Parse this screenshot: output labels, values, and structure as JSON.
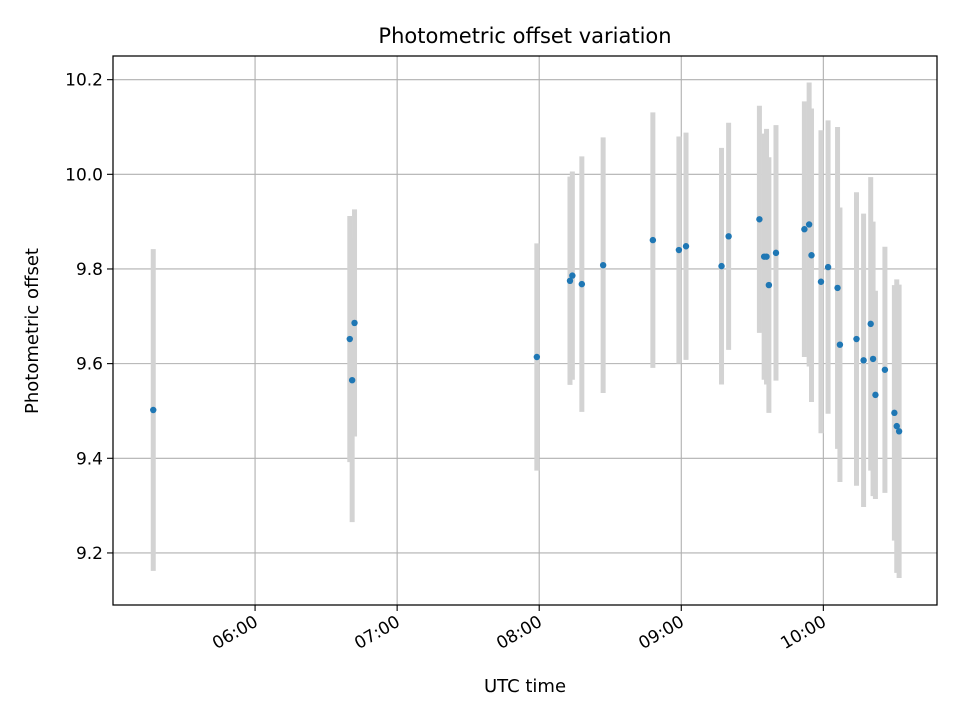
{
  "chart_data": {
    "type": "scatter",
    "title": "Photometric offset variation",
    "xlabel": "UTC time",
    "ylabel": "Photometric offset",
    "grid": true,
    "x_ticks": [
      "06:00",
      "07:00",
      "08:00",
      "09:00",
      "10:00"
    ],
    "y_ticks": [
      "9.2",
      "9.4",
      "9.6",
      "9.8",
      "10.0",
      "10.2"
    ],
    "xlim": [
      "05:00",
      "10:48"
    ],
    "ylim": [
      9.09,
      10.25
    ],
    "errorbar_color": "#d3d3d3",
    "point_color": "#1f77b4",
    "points": [
      {
        "x": "05:17",
        "y": 9.502,
        "err": 0.34
      },
      {
        "x": "06:40",
        "y": 9.652,
        "err": 0.26
      },
      {
        "x": "06:41",
        "y": 9.565,
        "err": 0.3
      },
      {
        "x": "06:42",
        "y": 9.686,
        "err": 0.24
      },
      {
        "x": "07:59",
        "y": 9.614,
        "err": 0.24
      },
      {
        "x": "08:13",
        "y": 9.775,
        "err": 0.22
      },
      {
        "x": "08:14",
        "y": 9.786,
        "err": 0.22
      },
      {
        "x": "08:18",
        "y": 9.768,
        "err": 0.27
      },
      {
        "x": "08:27",
        "y": 9.808,
        "err": 0.27
      },
      {
        "x": "08:48",
        "y": 9.861,
        "err": 0.27
      },
      {
        "x": "08:59",
        "y": 9.84,
        "err": 0.24
      },
      {
        "x": "09:02",
        "y": 9.848,
        "err": 0.24
      },
      {
        "x": "09:17",
        "y": 9.806,
        "err": 0.25
      },
      {
        "x": "09:20",
        "y": 9.869,
        "err": 0.24
      },
      {
        "x": "09:33",
        "y": 9.905,
        "err": 0.24
      },
      {
        "x": "09:35",
        "y": 9.826,
        "err": 0.26
      },
      {
        "x": "09:36",
        "y": 9.826,
        "err": 0.27
      },
      {
        "x": "09:37",
        "y": 9.766,
        "err": 0.27
      },
      {
        "x": "09:40",
        "y": 9.834,
        "err": 0.27
      },
      {
        "x": "09:52",
        "y": 9.884,
        "err": 0.27
      },
      {
        "x": "09:54",
        "y": 9.894,
        "err": 0.3
      },
      {
        "x": "09:55",
        "y": 9.829,
        "err": 0.31
      },
      {
        "x": "09:59",
        "y": 9.773,
        "err": 0.32
      },
      {
        "x": "10:02",
        "y": 9.804,
        "err": 0.31
      },
      {
        "x": "10:06",
        "y": 9.76,
        "err": 0.34
      },
      {
        "x": "10:07",
        "y": 9.64,
        "err": 0.29
      },
      {
        "x": "10:14",
        "y": 9.652,
        "err": 0.31
      },
      {
        "x": "10:17",
        "y": 9.607,
        "err": 0.31
      },
      {
        "x": "10:20",
        "y": 9.684,
        "err": 0.31
      },
      {
        "x": "10:21",
        "y": 9.61,
        "err": 0.29
      },
      {
        "x": "10:22",
        "y": 9.534,
        "err": 0.22
      },
      {
        "x": "10:26",
        "y": 9.587,
        "err": 0.26
      },
      {
        "x": "10:30",
        "y": 9.496,
        "err": 0.27
      },
      {
        "x": "10:31",
        "y": 9.468,
        "err": 0.31
      },
      {
        "x": "10:32",
        "y": 9.457,
        "err": 0.31
      }
    ]
  }
}
